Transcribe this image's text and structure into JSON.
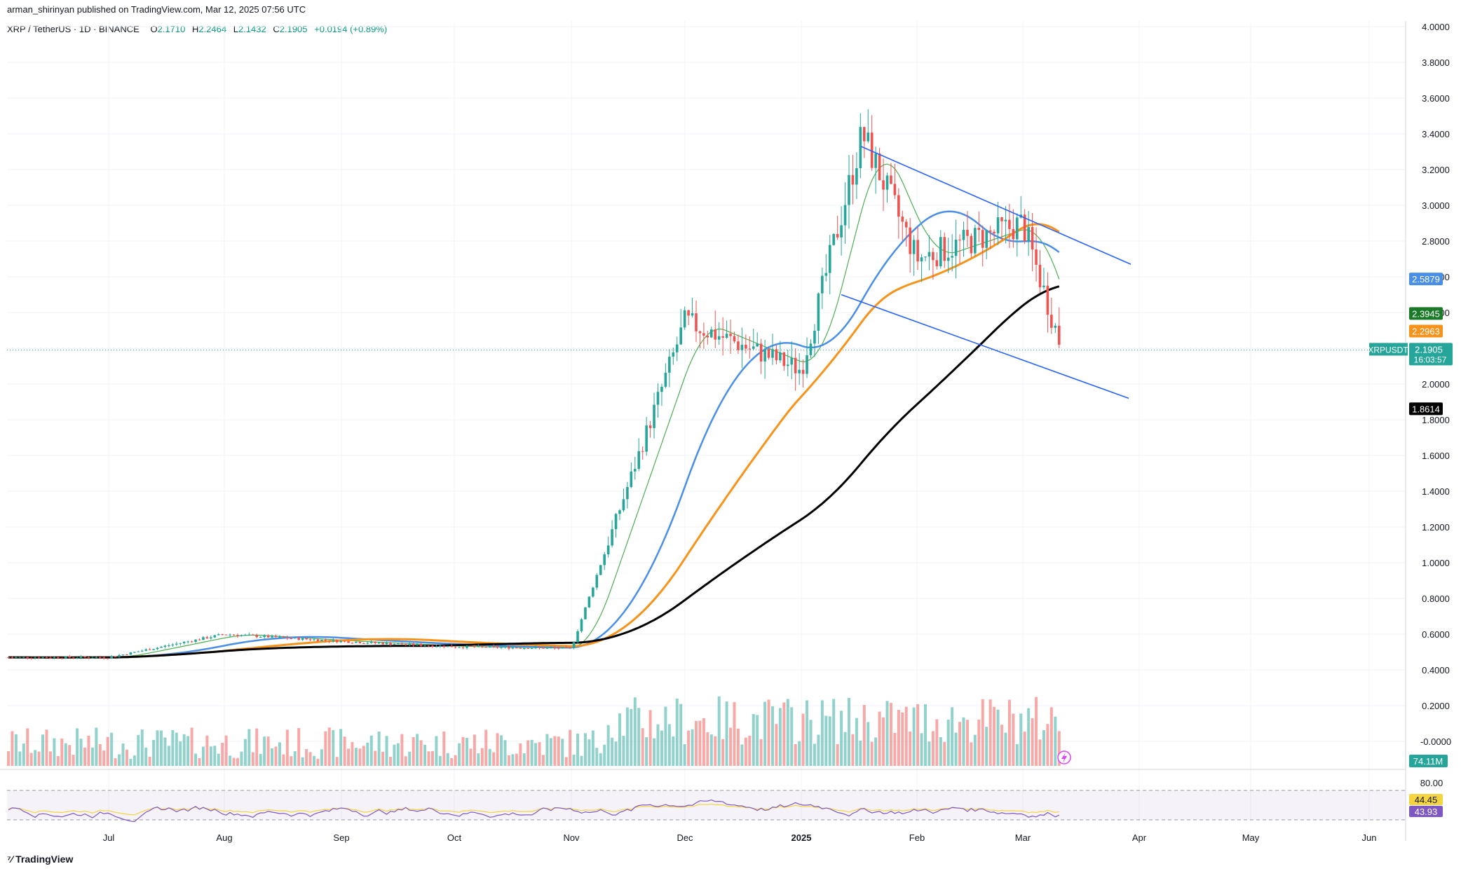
{
  "header": {
    "published": "arman_shirinyan published on TradingView.com, Mar 12, 2025 07:56 UTC"
  },
  "legend": {
    "symbol": "XRP / TetherUS · 1D · BINANCE",
    "o_label": "O",
    "o_value": "2.1710",
    "h_label": "H",
    "h_value": "2.2464",
    "l_label": "L",
    "l_value": "2.1432",
    "c_label": "C",
    "c_value": "2.1905",
    "change": "+0.0194 (+0.89%)"
  },
  "branding": {
    "name": "TradingView"
  },
  "colors": {
    "up": "#26a69a",
    "down": "#ef5350",
    "ma_green": "#4caf50",
    "ma_blue": "#4a8fe7",
    "ma_orange": "#f7931a",
    "ma_black": "#000000",
    "trendline": "#2962ff",
    "rsi": "#7e57c2",
    "rsi_ma": "#f5d442"
  },
  "chart_data": {
    "type": "candlestick",
    "symbol": "XRPUSDT",
    "timeframe": "1D",
    "exchange": "BINANCE",
    "price_axis_ticks": [
      "4.0000",
      "3.8000",
      "3.6000",
      "3.4000",
      "3.2000",
      "3.0000",
      "2.8000",
      "2.6000",
      "2.4000",
      "2.2000",
      "2.0000",
      "1.8000",
      "1.6000",
      "1.4000",
      "1.2000",
      "1.0000",
      "0.8000",
      "0.6000",
      "0.4000",
      "0.2000",
      "-0.0000"
    ],
    "time_axis_labels": [
      "Jul",
      "Aug",
      "Sep",
      "Oct",
      "Nov",
      "Dec",
      "2025",
      "Feb",
      "Mar",
      "Apr",
      "May",
      "Jun"
    ],
    "price_labels": [
      {
        "name": "MA blue",
        "value": "2.5879",
        "color": "#4a8fe7",
        "text_color": "#ffffff"
      },
      {
        "name": "MA green",
        "value": "2.3945",
        "color": "#1b7a28",
        "text_color": "#ffffff"
      },
      {
        "name": "MA orange",
        "value": "2.2963",
        "color": "#f7931a",
        "text_color": "#ffffff"
      },
      {
        "name": "MA black",
        "value": "1.8614",
        "color": "#000000",
        "text_color": "#ffffff"
      }
    ],
    "current_price": {
      "symbol": "XRPUSDT",
      "value": "2.1905",
      "countdown": "16:03:57"
    },
    "volume_label": "74.11M",
    "rsi": {
      "level_80": "80.00",
      "rsi_ma": "44.45",
      "rsi": "43.93"
    },
    "ohlc_last": {
      "open": 2.171,
      "high": 2.2464,
      "low": 2.1432,
      "close": 2.1905
    },
    "key_points": [
      {
        "label": "Jul",
        "close": 0.47
      },
      {
        "label": "Aug",
        "close": 0.6
      },
      {
        "label": "Sep",
        "close": 0.56
      },
      {
        "label": "Oct",
        "close": 0.53
      },
      {
        "label": "Nov",
        "close": 0.52
      },
      {
        "label": "Dec",
        "close": 2.35
      },
      {
        "label": "2025",
        "close": 2.08
      },
      {
        "label": "Jan high",
        "close": 3.4
      },
      {
        "label": "Feb",
        "close": 2.7
      },
      {
        "label": "Mar",
        "close": 2.9
      },
      {
        "label": "Mar 12",
        "close": 2.1905
      }
    ],
    "trend_channel": {
      "upper": {
        "from_price": 3.33,
        "to_price": 2.67
      },
      "lower": {
        "from_price": 2.5,
        "to_price": 1.92
      }
    }
  }
}
